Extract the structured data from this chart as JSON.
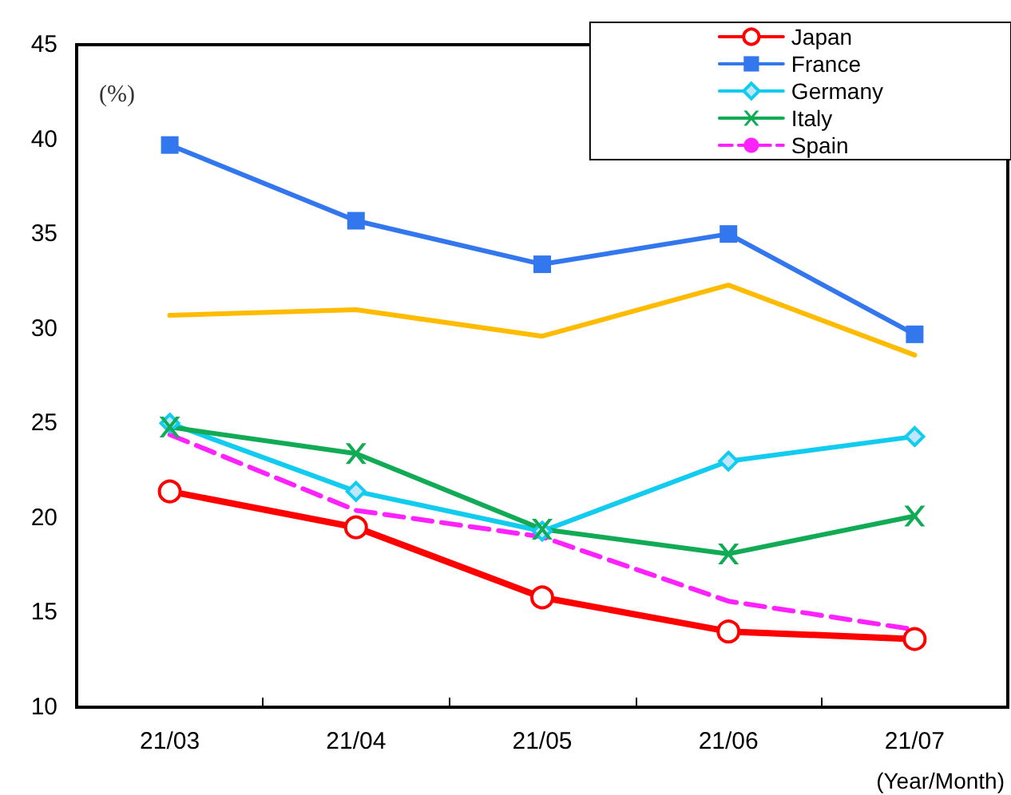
{
  "chart_data": {
    "type": "line",
    "ylabel": "(%)",
    "xlabel": "(Year/Month)",
    "categories": [
      "21/03",
      "21/04",
      "21/05",
      "21/06",
      "21/07"
    ],
    "series": [
      {
        "name": "Japan",
        "color": "#ff0000",
        "marker": "circle",
        "line_style": "solid",
        "values": [
          21.4,
          19.5,
          15.8,
          14.0,
          13.6
        ]
      },
      {
        "name": "France",
        "color": "#3377ee",
        "marker": "square",
        "line_style": "solid",
        "values": [
          39.7,
          35.7,
          33.4,
          35.0,
          29.7
        ]
      },
      {
        "name": "Germany",
        "color": "#11ccee",
        "marker": "diamond",
        "line_style": "solid",
        "values": [
          25.0,
          21.4,
          19.3,
          23.0,
          24.3
        ]
      },
      {
        "name": "Italy",
        "color": "#11aa55",
        "marker": "cross",
        "line_style": "solid",
        "values": [
          24.8,
          23.4,
          19.4,
          18.1,
          20.1
        ]
      },
      {
        "name": "Spain",
        "color": "#ff22ff",
        "marker": "none",
        "line_style": "dashed",
        "values": [
          24.4,
          20.4,
          19.0,
          15.6,
          14.1
        ]
      },
      {
        "color": "#ffbb00",
        "marker": "none",
        "line_style": "solid",
        "values": [
          30.7,
          31.0,
          29.6,
          32.3,
          28.6
        ]
      }
    ],
    "ylim": [
      10,
      45
    ],
    "yticks": [
      10,
      15,
      20,
      25,
      30,
      35,
      40,
      45
    ],
    "grid": false,
    "legend": "top right"
  }
}
